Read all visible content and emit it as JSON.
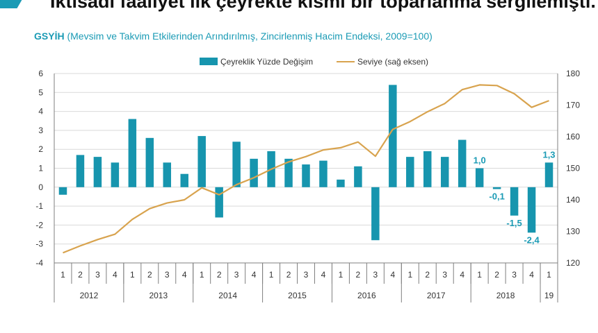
{
  "headline": "İktisadi faaliyet ilk çeyrekte kısmi bir toparlanma sergilemişti.",
  "colors": {
    "bar": "#1795ae",
    "line": "#d8a34e",
    "accent": "#1b9bb5",
    "axis": "#7f7f7f",
    "text": "#333333"
  },
  "chart_data": {
    "type": "bar+line",
    "title": "GSYİH",
    "subtitle": "(Mevsim ve Takvim Etkilerinden Arındırılmış, Zincirlenmiş Hacim Endeksi, 2009=100)",
    "legend": {
      "position": "top",
      "bars": "Çeyreklik Yüzde Değişim",
      "line": "Seviye (sağ eksen)"
    },
    "y_left": {
      "min": -4,
      "max": 6,
      "ticks": [
        "-4",
        "-3",
        "-2",
        "-1",
        "0",
        "1",
        "2",
        "3",
        "4",
        "5",
        "6"
      ]
    },
    "y_right": {
      "min": 120,
      "max": 180,
      "ticks": [
        "120",
        "130",
        "140",
        "150",
        "160",
        "170",
        "180"
      ]
    },
    "quarters": [
      "1",
      "2",
      "3",
      "4",
      "1",
      "2",
      "3",
      "4",
      "1",
      "2",
      "3",
      "4",
      "1",
      "2",
      "3",
      "4",
      "1",
      "2",
      "3",
      "4",
      "1",
      "2",
      "3",
      "4",
      "1",
      "2",
      "3",
      "4",
      "1"
    ],
    "years": [
      {
        "label": "2012",
        "count": 4
      },
      {
        "label": "2013",
        "count": 4
      },
      {
        "label": "2014",
        "count": 4
      },
      {
        "label": "2015",
        "count": 4
      },
      {
        "label": "2016",
        "count": 4
      },
      {
        "label": "2017",
        "count": 4
      },
      {
        "label": "2018",
        "count": 4
      },
      {
        "label": "19",
        "count": 1
      }
    ],
    "series": [
      {
        "name": "Çeyreklik Yüzde Değişim",
        "type": "bar",
        "axis": "left",
        "values": [
          -0.4,
          1.7,
          1.6,
          1.3,
          3.6,
          2.6,
          1.3,
          0.7,
          2.7,
          -1.6,
          2.4,
          1.5,
          1.9,
          1.5,
          1.2,
          1.4,
          0.4,
          1.1,
          -2.8,
          5.4,
          1.6,
          1.9,
          1.6,
          2.5,
          1.0,
          -0.1,
          -1.5,
          -2.4,
          1.3
        ]
      },
      {
        "name": "Seviye (sağ eksen)",
        "type": "line",
        "axis": "right",
        "values": [
          123.2,
          125.4,
          127.4,
          129.1,
          133.8,
          137.2,
          139.0,
          140.0,
          143.8,
          141.6,
          144.8,
          147.0,
          149.7,
          152.0,
          153.7,
          155.8,
          156.5,
          158.3,
          153.8,
          162.3,
          164.8,
          167.9,
          170.5,
          174.9,
          176.4,
          176.2,
          173.6,
          169.3,
          171.4
        ]
      }
    ],
    "data_labels": [
      {
        "index": 24,
        "text": "1,0"
      },
      {
        "index": 25,
        "text": "-0,1"
      },
      {
        "index": 26,
        "text": "-1,5"
      },
      {
        "index": 27,
        "text": "-2,4"
      },
      {
        "index": 28,
        "text": "1,3"
      }
    ]
  }
}
